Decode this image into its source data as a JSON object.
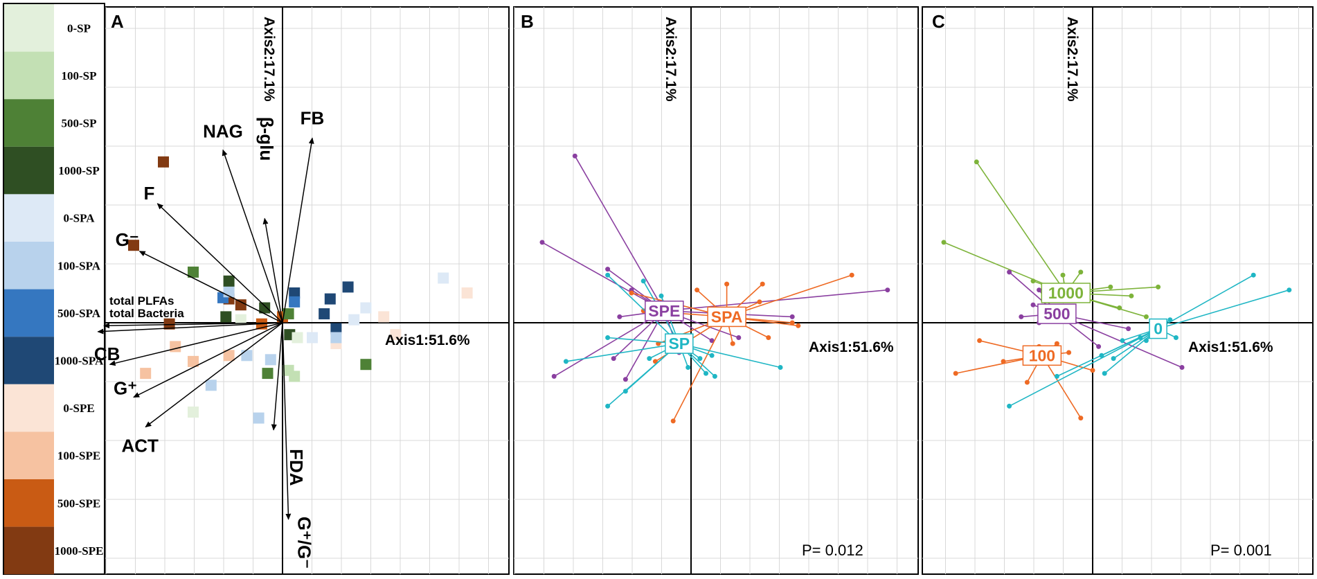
{
  "colors": {
    "0-SP": "#e3f0dc",
    "100-SP": "#c3e0b4",
    "500-SP": "#4e8136",
    "1000-SP": "#2f4f23",
    "0-SPA": "#dde9f6",
    "100-SPA": "#b8d2ec",
    "500-SPA": "#3577c0",
    "1000-SPA": "#1f4875",
    "0-SPE": "#fbe4d6",
    "100-SPE": "#f6c2a1",
    "500-SPE": "#c95b14",
    "1000-SPE": "#823a12",
    "SPE": "#8a3fa0",
    "SPA": "#ee6a24",
    "SP": "#1fb6c4",
    "0": "#1fb6c4",
    "100": "#ee6a24",
    "500": "#8a3fa0",
    "1000": "#7db33a"
  },
  "legend": {
    "items": [
      "0-SP",
      "100-SP",
      "500-SP",
      "1000-SP",
      "0-SPA",
      "100-SPA",
      "500-SPA",
      "1000-SPA",
      "0-SPE",
      "100-SPE",
      "500-SPE",
      "1000-SPE"
    ]
  },
  "chart_data": [
    {
      "type": "scatter",
      "panel": "A",
      "title": "A",
      "xlabel": "Axis1:51.6%",
      "ylabel": "Axis2:17.1%",
      "xlim": [
        -3,
        4
      ],
      "ylim": [
        -3,
        4
      ],
      "points": [
        {
          "g": "1000-SPE",
          "x": -2.0,
          "y": 2.7
        },
        {
          "g": "1000-SPE",
          "x": -2.5,
          "y": 1.3
        },
        {
          "g": "1000-SPE",
          "x": -0.9,
          "y": 0.4
        },
        {
          "g": "1000-SPE",
          "x": -0.7,
          "y": 0.3
        },
        {
          "g": "1000-SPE",
          "x": -1.9,
          "y": -0.02
        },
        {
          "g": "500-SPE",
          "x": 0.0,
          "y": 0.1
        },
        {
          "g": "500-SPE",
          "x": -0.35,
          "y": -0.02
        },
        {
          "g": "100-SPE",
          "x": -1.8,
          "y": -0.4
        },
        {
          "g": "100-SPE",
          "x": -1.5,
          "y": -0.65
        },
        {
          "g": "100-SPE",
          "x": -0.9,
          "y": -0.55
        },
        {
          "g": "100-SPE",
          "x": -2.3,
          "y": -0.85
        },
        {
          "g": "0-SPE",
          "x": 1.7,
          "y": 0.1
        },
        {
          "g": "0-SPE",
          "x": 1.9,
          "y": -0.2
        },
        {
          "g": "0-SPE",
          "x": 3.1,
          "y": 0.5
        },
        {
          "g": "0-SPE",
          "x": 0.9,
          "y": -0.35
        },
        {
          "g": "1000-SPA",
          "x": 1.1,
          "y": 0.6
        },
        {
          "g": "1000-SPA",
          "x": 0.8,
          "y": 0.4
        },
        {
          "g": "1000-SPA",
          "x": 0.7,
          "y": 0.15
        },
        {
          "g": "1000-SPA",
          "x": 0.9,
          "y": -0.1
        },
        {
          "g": "1000-SPA",
          "x": 0.2,
          "y": 0.5
        },
        {
          "g": "500-SPA",
          "x": 0.2,
          "y": 0.35
        },
        {
          "g": "500-SPA",
          "x": -1.0,
          "y": 0.42
        },
        {
          "g": "100-SPA",
          "x": -0.9,
          "y": 0.52
        },
        {
          "g": "100-SPA",
          "x": -0.6,
          "y": -0.55
        },
        {
          "g": "100-SPA",
          "x": -1.2,
          "y": -1.05
        },
        {
          "g": "100-SPA",
          "x": -0.4,
          "y": -1.6
        },
        {
          "g": "100-SPA",
          "x": -0.2,
          "y": -0.62
        },
        {
          "g": "100-SPA",
          "x": 0.9,
          "y": -0.25
        },
        {
          "g": "0-SPA",
          "x": 1.4,
          "y": 0.25
        },
        {
          "g": "0-SPA",
          "x": 0.5,
          "y": -0.25
        },
        {
          "g": "0-SPA",
          "x": 2.7,
          "y": 0.75
        },
        {
          "g": "0-SPA",
          "x": 1.2,
          "y": 0.05
        },
        {
          "g": "1000-SP",
          "x": -0.9,
          "y": 0.7
        },
        {
          "g": "1000-SP",
          "x": -0.95,
          "y": 0.1
        },
        {
          "g": "1000-SP",
          "x": -0.3,
          "y": 0.25
        },
        {
          "g": "1000-SP",
          "x": 0.12,
          "y": -0.2
        },
        {
          "g": "500-SP",
          "x": -1.5,
          "y": 0.85
        },
        {
          "g": "500-SP",
          "x": -0.25,
          "y": -0.85
        },
        {
          "g": "500-SP",
          "x": 1.4,
          "y": -0.7
        },
        {
          "g": "500-SP",
          "x": 0.1,
          "y": 0.15
        },
        {
          "g": "100-SP",
          "x": 0.1,
          "y": -0.8
        },
        {
          "g": "100-SP",
          "x": 0.2,
          "y": -0.9
        },
        {
          "g": "0-SP",
          "x": -1.5,
          "y": -1.5
        },
        {
          "g": "0-SP",
          "x": 0.25,
          "y": -0.25
        },
        {
          "g": "0-SP",
          "x": -0.7,
          "y": 0.05
        }
      ],
      "vectors": [
        {
          "label": "FB",
          "x": 0.5,
          "y": 3.1
        },
        {
          "label": "NAG",
          "x": -1.0,
          "y": 2.9
        },
        {
          "label": "β-glu",
          "x": -0.3,
          "y": 1.75
        },
        {
          "label": "F",
          "x": -2.1,
          "y": 2.0
        },
        {
          "label": "G⁻",
          "x": -2.4,
          "y": 1.2
        },
        {
          "label": "total PLFAs",
          "x": -3.0,
          "y": -0.05
        },
        {
          "label": "total Bacteria",
          "x": -3.1,
          "y": -0.15
        },
        {
          "label": "CB",
          "x": -2.9,
          "y": -0.7
        },
        {
          "label": "G⁺",
          "x": -2.5,
          "y": -1.25
        },
        {
          "label": "ACT",
          "x": -2.3,
          "y": -1.75
        },
        {
          "label": "FDA",
          "x": -0.15,
          "y": -1.8
        },
        {
          "label": "G⁺/G⁻",
          "x": 0.1,
          "y": -3.3
        }
      ]
    },
    {
      "type": "scatter",
      "panel": "B",
      "title": "B",
      "xlabel": "Axis1:51.6%",
      "ylabel": "Axis2:17.1%",
      "annotation": "P= 0.012",
      "xlim": [
        -3,
        4
      ],
      "ylim": [
        -3,
        4
      ],
      "groups": [
        {
          "name": "SPE",
          "centroid": [
            -0.45,
            0.2
          ],
          "spokes": [
            [
              -1.95,
              2.8
            ],
            [
              -2.5,
              1.35
            ],
            [
              -1.4,
              0.9
            ],
            [
              -1.0,
              0.55
            ],
            [
              -0.7,
              0.3
            ],
            [
              -1.2,
              0.1
            ],
            [
              -2.3,
              -0.9
            ],
            [
              -1.3,
              -0.6
            ],
            [
              -1.1,
              -0.95
            ],
            [
              -0.2,
              -0.5
            ],
            [
              0.35,
              -0.3
            ],
            [
              0.8,
              -0.25
            ],
            [
              1.7,
              0.1
            ],
            [
              3.3,
              0.55
            ]
          ]
        },
        {
          "name": "SPA",
          "centroid": [
            0.6,
            0.1
          ],
          "spokes": [
            [
              2.7,
              0.8
            ],
            [
              1.2,
              0.65
            ],
            [
              -1.0,
              0.5
            ],
            [
              -0.8,
              0.2
            ],
            [
              -0.55,
              -0.35
            ],
            [
              0.1,
              0.55
            ],
            [
              0.6,
              0.65
            ],
            [
              1.15,
              0.35
            ],
            [
              1.7,
              0.0
            ],
            [
              1.8,
              -0.05
            ],
            [
              0.7,
              -0.35
            ],
            [
              1.3,
              -0.25
            ],
            [
              -0.6,
              -0.65
            ],
            [
              -0.3,
              -1.65
            ]
          ]
        },
        {
          "name": "SP",
          "centroid": [
            -0.2,
            -0.35
          ],
          "spokes": [
            [
              -1.4,
              0.8
            ],
            [
              -0.8,
              0.7
            ],
            [
              -0.5,
              0.45
            ],
            [
              -1.4,
              -0.25
            ],
            [
              -2.1,
              -0.65
            ],
            [
              -1.1,
              -1.15
            ],
            [
              -1.4,
              -1.4
            ],
            [
              -0.7,
              -0.6
            ],
            [
              -0.05,
              -0.75
            ],
            [
              0.25,
              -0.85
            ],
            [
              0.15,
              -0.6
            ],
            [
              0.35,
              -0.55
            ],
            [
              1.5,
              -0.75
            ],
            [
              0.4,
              -0.9
            ]
          ]
        }
      ]
    },
    {
      "type": "scatter",
      "panel": "C",
      "title": "C",
      "xlabel": "Axis1:51.6%",
      "ylabel": "Axis2:17.1%",
      "annotation": "P= 0.001",
      "xlim": [
        -3,
        4
      ],
      "ylim": [
        -3,
        4
      ],
      "groups": [
        {
          "name": "1000",
          "centroid": [
            -0.45,
            0.5
          ],
          "spokes": [
            [
              -1.95,
              2.7
            ],
            [
              -2.5,
              1.35
            ],
            [
              -1.0,
              0.7
            ],
            [
              0.3,
              0.6
            ],
            [
              1.1,
              0.6
            ],
            [
              0.45,
              0.25
            ],
            [
              0.9,
              0.1
            ],
            [
              0.65,
              0.45
            ],
            [
              -0.2,
              0.85
            ],
            [
              -0.5,
              0.8
            ]
          ]
        },
        {
          "name": "500",
          "centroid": [
            -0.6,
            0.15
          ],
          "spokes": [
            [
              -1.4,
              0.85
            ],
            [
              -0.9,
              0.55
            ],
            [
              -1.0,
              0.3
            ],
            [
              -1.2,
              0.1
            ],
            [
              -0.9,
              0.0
            ],
            [
              0.1,
              -0.4
            ],
            [
              1.5,
              -0.75
            ],
            [
              0.6,
              -0.1
            ]
          ]
        },
        {
          "name": "100",
          "centroid": [
            -0.85,
            -0.55
          ],
          "spokes": [
            [
              -2.3,
              -0.85
            ],
            [
              -1.9,
              -0.3
            ],
            [
              -1.5,
              -0.65
            ],
            [
              -1.1,
              -1.0
            ],
            [
              -0.9,
              -0.4
            ],
            [
              -0.4,
              -0.5
            ],
            [
              -0.2,
              -1.6
            ],
            [
              0.0,
              -0.8
            ],
            [
              -0.6,
              -0.35
            ]
          ]
        },
        {
          "name": "0",
          "centroid": [
            1.1,
            -0.1
          ],
          "spokes": [
            [
              2.7,
              0.8
            ],
            [
              3.3,
              0.55
            ],
            [
              1.3,
              0.05
            ],
            [
              1.2,
              0.0
            ],
            [
              0.5,
              -0.3
            ],
            [
              0.9,
              -0.3
            ],
            [
              -1.4,
              -1.4
            ],
            [
              -0.6,
              -0.9
            ],
            [
              0.2,
              -0.85
            ],
            [
              0.35,
              -0.6
            ],
            [
              0.15,
              -0.55
            ],
            [
              1.4,
              -0.25
            ],
            [
              0.8,
              -0.25
            ]
          ]
        }
      ]
    }
  ]
}
